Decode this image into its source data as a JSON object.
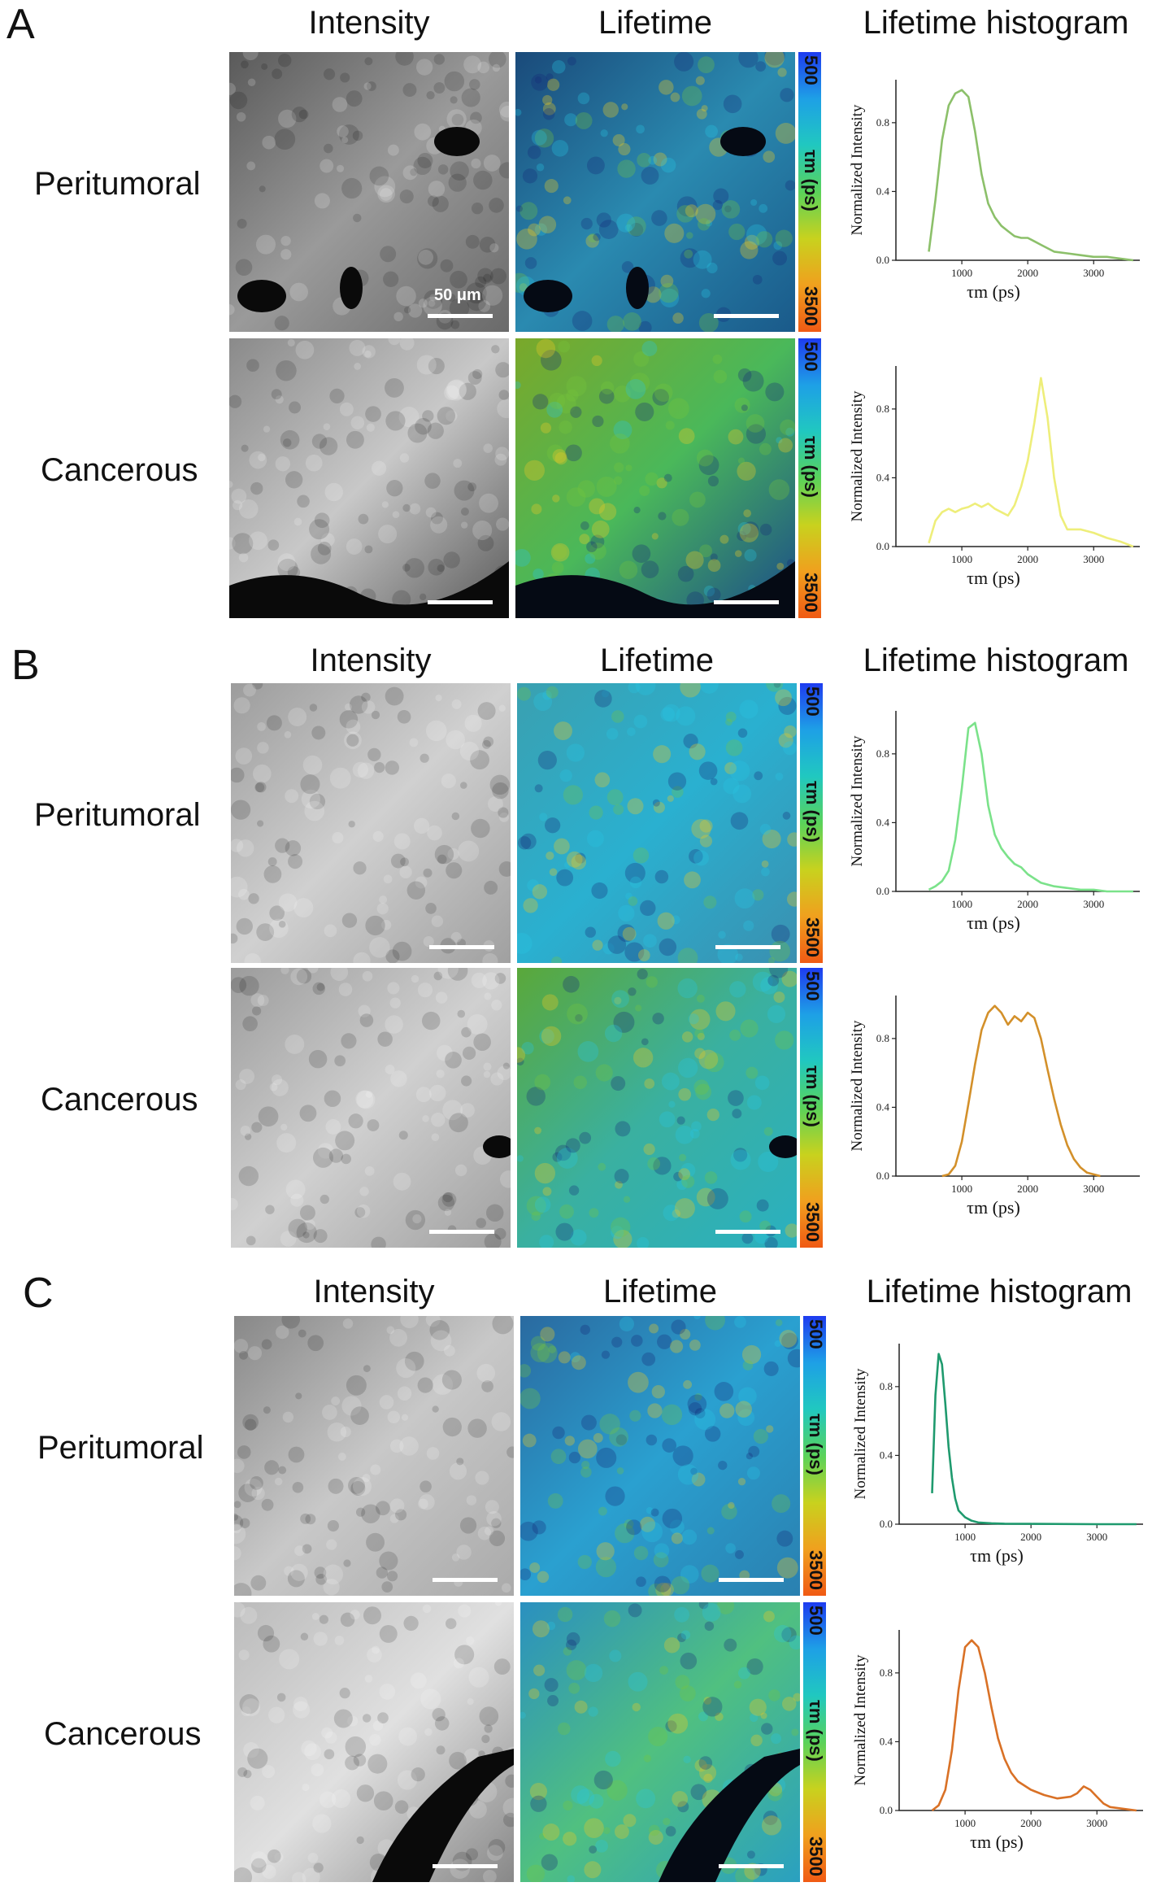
{
  "panels": [
    {
      "letter": "A",
      "col_intensity": "Intensity",
      "col_lifetime": "Lifetime",
      "col_hist": "Lifetime histogram",
      "rows": [
        {
          "label": "Peritumoral",
          "scale_text": "50 μm"
        },
        {
          "label": "Cancerous",
          "scale_text": ""
        }
      ]
    },
    {
      "letter": "B",
      "col_intensity": "Intensity",
      "col_lifetime": "Lifetime",
      "col_hist": "Lifetime histogram",
      "rows": [
        {
          "label": "Peritumoral",
          "scale_text": ""
        },
        {
          "label": "Cancerous",
          "scale_text": ""
        }
      ]
    },
    {
      "letter": "C",
      "col_intensity": "Intensity",
      "col_lifetime": "Lifetime",
      "col_hist": "Lifetime histogram",
      "rows": [
        {
          "label": "Peritumoral",
          "scale_text": ""
        },
        {
          "label": "Cancerous",
          "scale_text": ""
        }
      ]
    }
  ],
  "colorbar": {
    "top": "500",
    "middle": "τm (ps)",
    "bottom": "3500",
    "colors": [
      "#1e3cf0",
      "#1ea0e6",
      "#20c8c0",
      "#5ad25a",
      "#c8d21e",
      "#f0a01e",
      "#f05a14"
    ]
  },
  "chart_data": [
    {
      "type": "line",
      "name": "A-Peritumoral",
      "color": "#8cc06a",
      "ylabel": "Normalized Intensity",
      "xlabel": "τm (ps)",
      "xlim": [
        0,
        3700
      ],
      "ylim": [
        0,
        1.05
      ],
      "xticks": [
        1000,
        2000,
        3000
      ],
      "yticks": [
        0.0,
        0.4,
        0.8
      ],
      "x": [
        500,
        600,
        700,
        800,
        900,
        1000,
        1100,
        1200,
        1300,
        1400,
        1500,
        1600,
        1700,
        1800,
        1900,
        2000,
        2100,
        2200,
        2400,
        2600,
        2800,
        3000,
        3200,
        3400,
        3600
      ],
      "y": [
        0.05,
        0.35,
        0.7,
        0.9,
        0.97,
        0.99,
        0.95,
        0.75,
        0.5,
        0.33,
        0.25,
        0.2,
        0.17,
        0.14,
        0.13,
        0.13,
        0.11,
        0.09,
        0.05,
        0.04,
        0.03,
        0.02,
        0.02,
        0.01,
        0.0
      ]
    },
    {
      "type": "line",
      "name": "A-Cancerous",
      "color": "#eeee7a",
      "ylabel": "Normalized Intensity",
      "xlabel": "τm (ps)",
      "xlim": [
        0,
        3700
      ],
      "ylim": [
        0,
        1.05
      ],
      "xticks": [
        1000,
        2000,
        3000
      ],
      "yticks": [
        0.0,
        0.4,
        0.8
      ],
      "x": [
        500,
        600,
        700,
        800,
        900,
        1000,
        1100,
        1200,
        1300,
        1400,
        1500,
        1600,
        1700,
        1800,
        1900,
        2000,
        2100,
        2200,
        2300,
        2400,
        2500,
        2600,
        2800,
        3000,
        3200,
        3400,
        3600
      ],
      "y": [
        0.02,
        0.15,
        0.2,
        0.22,
        0.2,
        0.22,
        0.23,
        0.25,
        0.23,
        0.25,
        0.22,
        0.2,
        0.18,
        0.24,
        0.35,
        0.5,
        0.72,
        0.98,
        0.75,
        0.4,
        0.18,
        0.1,
        0.1,
        0.08,
        0.05,
        0.03,
        0.0
      ]
    },
    {
      "type": "line",
      "name": "B-Peritumoral",
      "color": "#7be28a",
      "ylabel": "Normalized Intensity",
      "xlabel": "τm (ps)",
      "xlim": [
        0,
        3700
      ],
      "ylim": [
        0,
        1.05
      ],
      "xticks": [
        1000,
        2000,
        3000
      ],
      "yticks": [
        0.0,
        0.4,
        0.8
      ],
      "x": [
        500,
        600,
        700,
        800,
        900,
        1000,
        1100,
        1200,
        1300,
        1400,
        1500,
        1600,
        1700,
        1800,
        1900,
        2000,
        2200,
        2400,
        2600,
        2800,
        3000,
        3200,
        3400,
        3600
      ],
      "y": [
        0.01,
        0.03,
        0.06,
        0.12,
        0.3,
        0.6,
        0.95,
        0.98,
        0.8,
        0.5,
        0.33,
        0.25,
        0.2,
        0.16,
        0.14,
        0.1,
        0.05,
        0.03,
        0.02,
        0.01,
        0.01,
        0.0,
        0.0,
        0.0
      ]
    },
    {
      "type": "line",
      "name": "B-Cancerous",
      "color": "#d3902a",
      "ylabel": "Normalized Intensity",
      "xlabel": "τm (ps)",
      "xlim": [
        0,
        3700
      ],
      "ylim": [
        0,
        1.05
      ],
      "xticks": [
        1000,
        2000,
        3000
      ],
      "yticks": [
        0.0,
        0.4,
        0.8
      ],
      "x": [
        700,
        800,
        900,
        1000,
        1100,
        1200,
        1300,
        1400,
        1500,
        1600,
        1700,
        1800,
        1900,
        2000,
        2100,
        2200,
        2300,
        2400,
        2500,
        2600,
        2700,
        2800,
        2900,
        3000,
        3100
      ],
      "y": [
        0.0,
        0.01,
        0.06,
        0.2,
        0.42,
        0.65,
        0.85,
        0.95,
        0.99,
        0.95,
        0.88,
        0.93,
        0.9,
        0.95,
        0.92,
        0.8,
        0.62,
        0.45,
        0.3,
        0.18,
        0.1,
        0.05,
        0.02,
        0.01,
        0.0
      ]
    },
    {
      "type": "line",
      "name": "C-Peritumoral",
      "color": "#1f9a6e",
      "ylabel": "Normalized Intensity",
      "xlabel": "τm (ps)",
      "xlim": [
        0,
        3700
      ],
      "ylim": [
        0,
        1.05
      ],
      "xticks": [
        1000,
        2000,
        3000
      ],
      "yticks": [
        0.0,
        0.4,
        0.8
      ],
      "x": [
        500,
        550,
        600,
        650,
        700,
        750,
        800,
        850,
        900,
        1000,
        1100,
        1200,
        1400,
        1600,
        2000,
        3000,
        3600
      ],
      "y": [
        0.18,
        0.75,
        0.99,
        0.93,
        0.7,
        0.45,
        0.27,
        0.15,
        0.08,
        0.04,
        0.02,
        0.01,
        0.005,
        0.003,
        0.002,
        0.0,
        0.0
      ]
    },
    {
      "type": "line",
      "name": "C-Cancerous",
      "color": "#d97126",
      "ylabel": "Normalized Intensity",
      "xlabel": "τm (ps)",
      "xlim": [
        0,
        3700
      ],
      "ylim": [
        0,
        1.05
      ],
      "xticks": [
        1000,
        2000,
        3000
      ],
      "yticks": [
        0.0,
        0.4,
        0.8
      ],
      "x": [
        500,
        600,
        700,
        800,
        900,
        1000,
        1100,
        1200,
        1300,
        1400,
        1500,
        1600,
        1700,
        1800,
        2000,
        2200,
        2400,
        2600,
        2700,
        2800,
        2900,
        3000,
        3100,
        3200,
        3400,
        3600
      ],
      "y": [
        0.0,
        0.03,
        0.12,
        0.35,
        0.7,
        0.95,
        0.99,
        0.95,
        0.8,
        0.6,
        0.42,
        0.3,
        0.22,
        0.17,
        0.12,
        0.09,
        0.07,
        0.08,
        0.1,
        0.14,
        0.12,
        0.08,
        0.04,
        0.02,
        0.01,
        0.0
      ]
    }
  ]
}
